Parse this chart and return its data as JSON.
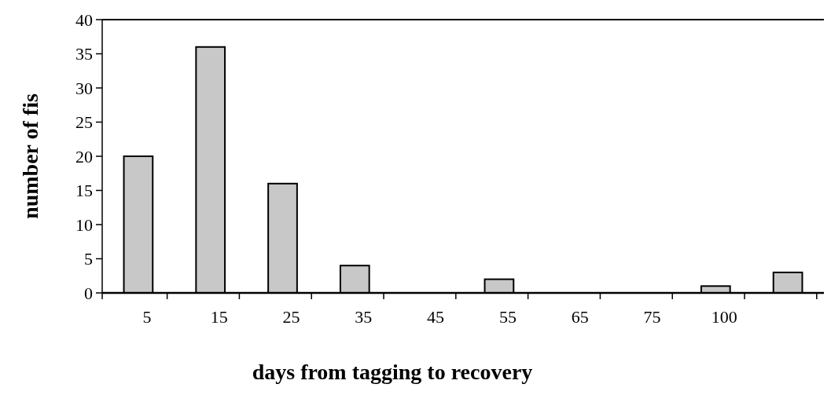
{
  "chart_data": {
    "type": "bar",
    "xlabel": "days from tagging to recovery",
    "ylabel": "number of fis",
    "categories": [
      "5",
      "15",
      "25",
      "35",
      "45",
      "55",
      "65",
      "75",
      "100",
      null
    ],
    "values": [
      20,
      36,
      16,
      4,
      0,
      2,
      0,
      0,
      1,
      3
    ],
    "color": "#c8c8c8",
    "ylim": [
      0,
      40
    ],
    "yticks": [
      0,
      5,
      10,
      15,
      20,
      25,
      30,
      35,
      40
    ],
    "grid": false
  }
}
